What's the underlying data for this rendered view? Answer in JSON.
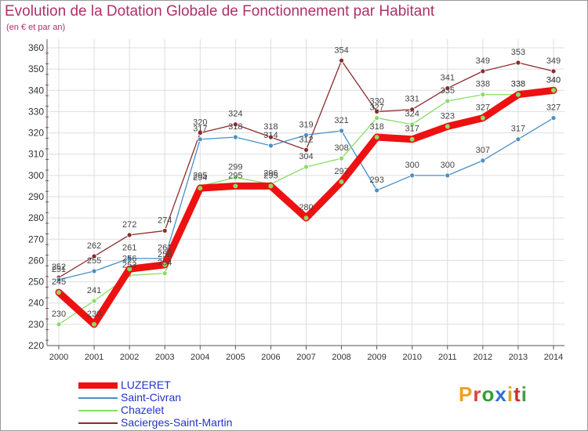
{
  "chart_data": {
    "type": "line",
    "title": "Evolution de la Dotation Globale de Fonctionnement par Habitant",
    "subtitle": "(en € et par an)",
    "x": [
      "2000",
      "2001",
      "2002",
      "2003",
      "2004",
      "2005",
      "2006",
      "2007",
      "2008",
      "2009",
      "2010",
      "2011",
      "2012",
      "2013",
      "2014"
    ],
    "ylim": [
      220,
      360
    ],
    "yticks": [
      220,
      230,
      240,
      250,
      260,
      270,
      280,
      290,
      300,
      310,
      320,
      330,
      340,
      350,
      360
    ],
    "series": [
      {
        "name": "LUZERET",
        "color": "#ee1111",
        "values": [
          245,
          230,
          256,
          258,
          294,
          295,
          295,
          280,
          297,
          318,
          317,
          323,
          327,
          338,
          340
        ]
      },
      {
        "name": "Saint-Civran",
        "color": "#4a8fc8",
        "values": [
          251,
          255,
          261,
          261,
          317,
          318,
          314,
          319,
          321,
          293,
          300,
          300,
          307,
          317,
          327
        ]
      },
      {
        "name": "Chazelet",
        "color": "#88dd66",
        "values": [
          230,
          241,
          253,
          254,
          295,
          299,
          296,
          304,
          308,
          327,
          324,
          335,
          338,
          338,
          340
        ]
      },
      {
        "name": "Sacierges-Saint-Martin",
        "color": "#8b2b2b",
        "values": [
          252,
          262,
          272,
          274,
          320,
          324,
          318,
          312,
          354,
          330,
          331,
          341,
          349,
          353,
          349
        ]
      }
    ]
  },
  "logo": {
    "letters": [
      "P",
      "r",
      "o",
      "x",
      "i",
      "t",
      "i"
    ],
    "colors": [
      "#f0a020",
      "#e04040",
      "#30a030",
      "#3070d0",
      "#e0a020",
      "#d03030",
      "#40a040"
    ]
  }
}
